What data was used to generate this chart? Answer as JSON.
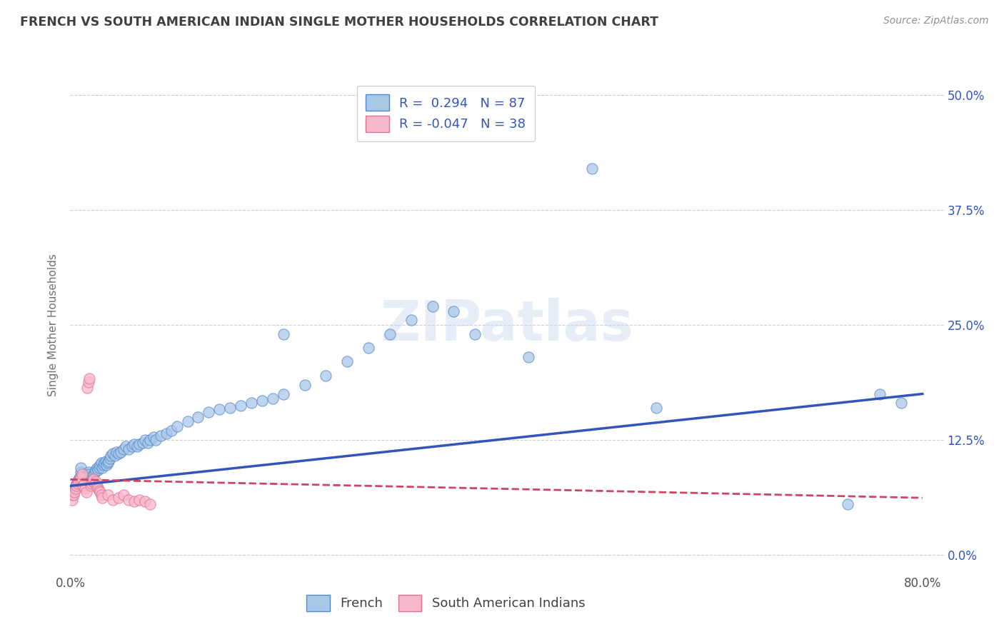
{
  "title": "FRENCH VS SOUTH AMERICAN INDIAN SINGLE MOTHER HOUSEHOLDS CORRELATION CHART",
  "source": "Source: ZipAtlas.com",
  "ylabel": "Single Mother Households",
  "xlim": [
    0.0,
    0.82
  ],
  "ylim": [
    -0.02,
    0.52
  ],
  "ytick_labels": [
    "0.0%",
    "12.5%",
    "25.0%",
    "37.5%",
    "50.0%"
  ],
  "ytick_values": [
    0.0,
    0.125,
    0.25,
    0.375,
    0.5
  ],
  "xtick_labels": [
    "0.0%",
    "",
    "",
    "",
    "",
    "",
    "",
    "",
    "80.0%"
  ],
  "xtick_values": [
    0.0,
    0.1,
    0.2,
    0.3,
    0.4,
    0.5,
    0.6,
    0.7,
    0.8
  ],
  "color_french": "#a8c8e8",
  "color_sa_indian": "#f8b8cc",
  "color_french_edge": "#5588cc",
  "color_sa_edge": "#e07090",
  "color_french_line": "#3355bb",
  "color_sa_indian_line": "#cc4466",
  "title_color": "#404040",
  "grid_color": "#ccccdd",
  "french_scatter_x": [
    0.002,
    0.003,
    0.004,
    0.005,
    0.006,
    0.007,
    0.008,
    0.009,
    0.01,
    0.01,
    0.011,
    0.012,
    0.013,
    0.014,
    0.015,
    0.015,
    0.016,
    0.017,
    0.018,
    0.019,
    0.02,
    0.021,
    0.022,
    0.023,
    0.024,
    0.025,
    0.026,
    0.027,
    0.028,
    0.029,
    0.03,
    0.031,
    0.032,
    0.033,
    0.034,
    0.035,
    0.036,
    0.037,
    0.038,
    0.04,
    0.042,
    0.043,
    0.045,
    0.047,
    0.05,
    0.052,
    0.055,
    0.058,
    0.06,
    0.063,
    0.065,
    0.068,
    0.07,
    0.073,
    0.075,
    0.078,
    0.08,
    0.085,
    0.09,
    0.095,
    0.1,
    0.11,
    0.12,
    0.13,
    0.14,
    0.15,
    0.16,
    0.17,
    0.18,
    0.19,
    0.2,
    0.22,
    0.24,
    0.26,
    0.28,
    0.3,
    0.32,
    0.34,
    0.36,
    0.38,
    0.43,
    0.55,
    0.73,
    0.76,
    0.78,
    0.49,
    0.2
  ],
  "french_scatter_y": [
    0.065,
    0.07,
    0.072,
    0.075,
    0.078,
    0.08,
    0.082,
    0.085,
    0.09,
    0.095,
    0.085,
    0.082,
    0.08,
    0.078,
    0.082,
    0.085,
    0.088,
    0.09,
    0.088,
    0.085,
    0.082,
    0.085,
    0.088,
    0.09,
    0.092,
    0.095,
    0.092,
    0.095,
    0.098,
    0.1,
    0.095,
    0.098,
    0.1,
    0.102,
    0.098,
    0.1,
    0.102,
    0.105,
    0.108,
    0.11,
    0.108,
    0.112,
    0.11,
    0.112,
    0.115,
    0.118,
    0.115,
    0.118,
    0.12,
    0.118,
    0.12,
    0.122,
    0.125,
    0.122,
    0.125,
    0.128,
    0.125,
    0.13,
    0.132,
    0.135,
    0.14,
    0.145,
    0.15,
    0.155,
    0.158,
    0.16,
    0.162,
    0.165,
    0.168,
    0.17,
    0.175,
    0.185,
    0.195,
    0.21,
    0.225,
    0.24,
    0.255,
    0.27,
    0.265,
    0.24,
    0.215,
    0.16,
    0.055,
    0.175,
    0.165,
    0.42,
    0.24
  ],
  "sa_scatter_x": [
    0.002,
    0.003,
    0.004,
    0.005,
    0.006,
    0.007,
    0.008,
    0.009,
    0.01,
    0.011,
    0.012,
    0.013,
    0.014,
    0.015,
    0.016,
    0.017,
    0.018,
    0.019,
    0.02,
    0.021,
    0.022,
    0.023,
    0.024,
    0.025,
    0.026,
    0.027,
    0.028,
    0.029,
    0.03,
    0.035,
    0.04,
    0.045,
    0.05,
    0.055,
    0.06,
    0.065,
    0.07,
    0.075
  ],
  "sa_scatter_y": [
    0.06,
    0.065,
    0.068,
    0.072,
    0.075,
    0.078,
    0.08,
    0.082,
    0.085,
    0.088,
    0.075,
    0.078,
    0.072,
    0.068,
    0.182,
    0.188,
    0.192,
    0.075,
    0.078,
    0.08,
    0.082,
    0.078,
    0.08,
    0.075,
    0.072,
    0.07,
    0.068,
    0.065,
    0.062,
    0.065,
    0.06,
    0.062,
    0.065,
    0.06,
    0.058,
    0.06,
    0.058,
    0.055
  ],
  "french_trendline_x": [
    0.0,
    0.8
  ],
  "french_trendline_y": [
    0.075,
    0.175
  ],
  "sa_trendline_x": [
    0.0,
    0.8
  ],
  "sa_trendline_y": [
    0.082,
    0.062
  ],
  "background_color": "#ffffff"
}
